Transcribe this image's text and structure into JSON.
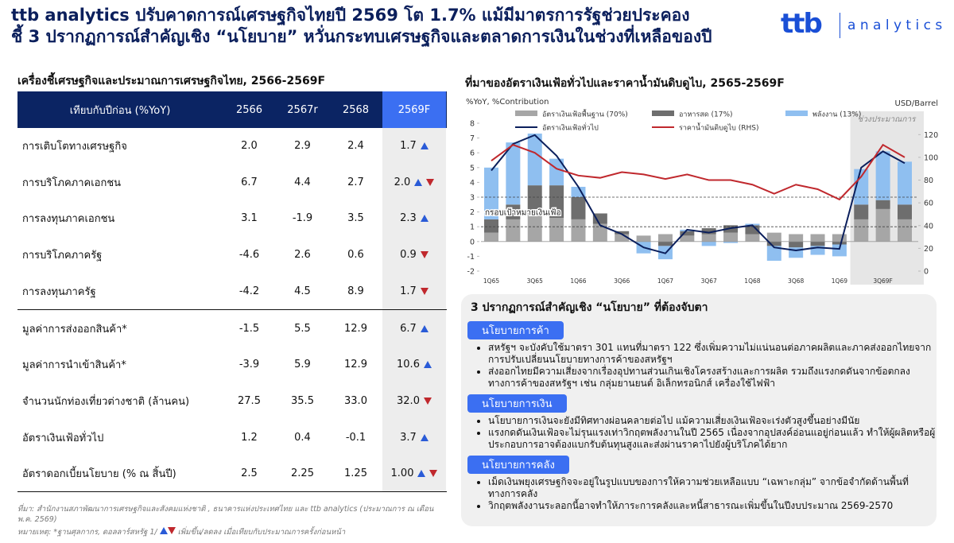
{
  "header": {
    "title_lines": [
      "ttb analytics ปรับคาดการณ์เศรษฐกิจไทยปี 2569 โต 1.7% แม้มีมาตรการรัฐช่วยประคอง",
      "ชี้ 3 ปรากฏการณ์สำคัญเชิง “นโยบาย” หวั่นกระทบเศรษฐกิจและตลาดการเงินในช่วงที่เหลือของปี"
    ],
    "logo_brand": "ttb",
    "logo_text": "a n a l y t i c s"
  },
  "table": {
    "title": "เครื่องชี้เศรษฐกิจและประมาณการเศรษฐกิจไทย, 2566-2569F",
    "columns": [
      "เทียบกับปีก่อน (%YoY)",
      "2566",
      "2567r",
      "2568",
      "2569F"
    ],
    "separator_after": 4,
    "rows": [
      {
        "cells": [
          "การเติบโตทางเศรษฐกิจ",
          "2.0",
          "2.9",
          "2.4",
          "1.7"
        ],
        "arrow": "up"
      },
      {
        "cells": [
          "การบริโภคภาคเอกชน",
          "6.7",
          "4.4",
          "2.7",
          "2.0"
        ],
        "arrow": "both"
      },
      {
        "cells": [
          "การลงทุนภาคเอกชน",
          "3.1",
          "-1.9",
          "3.5",
          "2.3"
        ],
        "arrow": "up"
      },
      {
        "cells": [
          "การบริโภคภาครัฐ",
          "-4.6",
          "2.6",
          "0.6",
          "0.9"
        ],
        "arrow": "down"
      },
      {
        "cells": [
          "การลงทุนภาครัฐ",
          "-4.2",
          "4.5",
          "8.9",
          "1.7"
        ],
        "arrow": "down"
      },
      {
        "cells": [
          "มูลค่าการส่งออกสินค้า*",
          "-1.5",
          "5.5",
          "12.9",
          "6.7"
        ],
        "arrow": "up"
      },
      {
        "cells": [
          "มูลค่าการนำเข้าสินค้า*",
          "-3.9",
          "5.9",
          "12.9",
          "10.6"
        ],
        "arrow": "up"
      },
      {
        "cells": [
          "จำนวนนักท่องเที่ยวต่างชาติ (ล้านคน)",
          "27.5",
          "35.5",
          "33.0",
          "32.0"
        ],
        "arrow": "down"
      },
      {
        "cells": [
          "อัตราเงินเฟ้อทั่วไป",
          "1.2",
          "0.4",
          "-0.1",
          "3.7"
        ],
        "arrow": "up"
      },
      {
        "cells": [
          "อัตราดอกเบี้ยนโยบาย (% ณ สิ้นปี)",
          "2.5",
          "2.25",
          "1.25",
          "1.00"
        ],
        "arrow": "both"
      }
    ],
    "source": "ที่มา: สำนักงานสภาพัฒนาการเศรษฐกิจและสังคมแห่งชาติ , ธนาคารแห่งประเทศไทย และ ttb analytics (ประมาณการ ณ เดือน พ.ค. 2569)",
    "note": "หมายเหตุ: *ฐานศุลกากร, ดอลลาร์สหรัฐ 1/",
    "note_arrow": "เพิ่มขึ้น/ลดลง เมื่อเทียบกับประมาณการครั้งก่อนหน้า"
  },
  "chart_data": {
    "type": "bar",
    "title": "ที่มาของอัตราเงินเฟ้อทั่วไปและราคาน้ำมันดิบดูไบ, 2565-2569F",
    "ylabel": "%YoY, %Contribution",
    "y2label": "USD/Barrel",
    "categories": [
      "1Q65",
      null,
      "3Q65",
      null,
      "1Q66",
      null,
      "3Q66",
      null,
      "1Q67",
      null,
      "3Q67",
      null,
      "1Q68",
      null,
      "3Q68",
      null,
      "1Q69",
      null,
      "3Q69F",
      null
    ],
    "stacked": true,
    "series": [
      {
        "name": "อัตราเงินเฟ้อพื้นฐาน (70%)",
        "type": "bar",
        "color": "#a6a6a6",
        "values": [
          0.6,
          1.5,
          1.9,
          1.6,
          1.5,
          1.2,
          0.5,
          0.4,
          0.5,
          0.4,
          0.5,
          0.6,
          0.5,
          0.6,
          0.5,
          0.5,
          0.5,
          1.5,
          2.2,
          1.5
        ]
      },
      {
        "name": "อาหารสด (17%)",
        "type": "bar",
        "color": "#6e6e6e",
        "values": [
          0.9,
          1.0,
          1.9,
          2.2,
          1.5,
          0.7,
          0.2,
          0.0,
          -0.3,
          0.3,
          0.4,
          0.5,
          0.6,
          -0.3,
          -0.4,
          -0.3,
          -0.2,
          1.0,
          0.6,
          1.0
        ]
      },
      {
        "name": "พลังงาน (13%)",
        "type": "bar",
        "color": "#8fbff0",
        "values": [
          3.5,
          4.2,
          3.5,
          1.8,
          0.7,
          0.0,
          0.0,
          -0.8,
          -0.9,
          0.1,
          -0.3,
          -0.1,
          0.1,
          -1.0,
          -0.7,
          -0.6,
          -0.8,
          2.4,
          3.3,
          2.9
        ]
      },
      {
        "name": "อัตราเงินเฟ้อทั่วไป",
        "type": "line",
        "color": "#0b1f5c",
        "values": [
          4.8,
          6.6,
          7.2,
          5.8,
          3.7,
          1.1,
          0.5,
          -0.4,
          -0.8,
          0.8,
          0.6,
          0.9,
          1.1,
          -0.4,
          -0.6,
          -0.4,
          -0.5,
          5.0,
          6.1,
          5.3
        ]
      },
      {
        "name": "ราคาน้ำมันดิบดูไบ (RHS)",
        "type": "line",
        "axis": "y2",
        "color": "#c0282d",
        "values": [
          97,
          111,
          104,
          90,
          84,
          82,
          87,
          85,
          81,
          85,
          80,
          80,
          76,
          68,
          76,
          72,
          63,
          83,
          111,
          100
        ]
      }
    ],
    "ylim": [
      -2,
      8
    ],
    "yticks": [
      -2,
      -1,
      0,
      1,
      2,
      3,
      4,
      5,
      6,
      7,
      8
    ],
    "y2lim": [
      0,
      130
    ],
    "y2ticks": [
      0,
      20,
      40,
      60,
      80,
      100,
      120
    ],
    "target_band": [
      1,
      3
    ],
    "target_label": "กรอบเป้าหมายเงินเฟ้อ",
    "forecast_region": {
      "label": "ช่วงประมาณการ",
      "from": 17
    }
  },
  "panel": {
    "title": "3 ปรากฏการณ์สำคัญเชิง “นโยบาย” ที่ต้องจับตา",
    "sections": [
      {
        "heading": "นโยบายการค้า",
        "bullets": [
          "สหรัฐฯ จะบังคับใช้มาตรา 301 แทนที่มาตรา 122  ซึ่งเพิ่มความไม่แน่นอนต่อภาคผลิตและภาคส่งออกไทยจากการปรับเปลี่ยนนโยบายทางการค้าของสหรัฐฯ",
          "ส่งออกไทยมีความเสี่ยงจากเรื่องอุปทานส่วนเกินเชิงโครงสร้างและการผลิต รวมถึงแรงกดดันจากข้อตกลงทางการค้าของสหรัฐฯ เช่น กลุ่มยานยนต์ อิเล็กทรอนิกส์ เครื่องใช้ไฟฟ้า"
        ]
      },
      {
        "heading": "นโยบายการเงิน",
        "bullets": [
          "นโยบายการเงินจะยังมีทิศทางผ่อนคลายต่อไป แม้ความเสี่ยงเงินเฟ้อจะเร่งตัวสูงขึ้นอย่างมีนัย",
          "แรงกดดันเงินเฟ้อจะไม่รุนแรงเท่าวิกฤตพลังงานในปี 2565 เนื่องจากอุปสงค์อ่อนแอยู่ก่อนแล้ว ทำให้ผู้ผลิตหรือผู้ประกอบการอาจต้องแบกรับต้นทุนสูงและส่งผ่านราคาไปยังผู้บริโภคได้ยาก"
        ]
      },
      {
        "heading": "นโยบายการคลัง",
        "bullets": [
          "เม็ดเงินพยุงเศรษฐกิจจะอยู่ในรูปแบบของการให้ความช่วยเหลือแบบ “เฉพาะกลุ่ม” จากข้อจำกัดด้านพื้นที่ทางการคลัง",
          "วิกฤตพลังงานระลอกนี้อาจทำให้ภาระการคลังและหนี้สาธารณะเพิ่มขึ้นในปีงบประมาณ 2569-2570"
        ]
      }
    ]
  }
}
